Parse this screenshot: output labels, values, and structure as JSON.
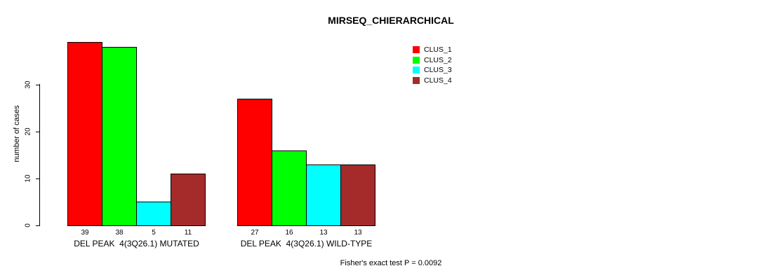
{
  "title": "MIRSEQ_CHIERARCHICAL",
  "footer": {
    "note": "Fisher's exact test P = 0.0092"
  },
  "chart_data": {
    "type": "bar",
    "title": "MIRSEQ_CHIERARCHICAL",
    "xlabel": "",
    "ylabel": "number of cases",
    "ylim": [
      0,
      39
    ],
    "yticks": [
      0,
      10,
      20,
      30
    ],
    "grid": false,
    "legend_position": "top-right",
    "categories": [
      "DEL PEAK  4(3Q26.1) MUTATED",
      "DEL PEAK  4(3Q26.1) WILD-TYPE"
    ],
    "series": [
      {
        "name": "CLUS_1",
        "color": "#FF0000",
        "values": [
          39,
          27
        ]
      },
      {
        "name": "CLUS_2",
        "color": "#00FF00",
        "values": [
          38,
          16
        ]
      },
      {
        "name": "CLUS_3",
        "color": "#00FFFF",
        "values": [
          5,
          13
        ]
      },
      {
        "name": "CLUS_4",
        "color": "#A52A2A",
        "values": [
          11,
          13
        ]
      }
    ],
    "groups": [
      {
        "label": "DEL PEAK  4(3Q26.1) MUTATED",
        "values": [
          39,
          38,
          5,
          11
        ]
      },
      {
        "label": "DEL PEAK  4(3Q26.1) WILD-TYPE",
        "values": [
          27,
          16,
          13,
          13
        ]
      }
    ],
    "annotation": "Fisher's exact test P = 0.0092"
  }
}
